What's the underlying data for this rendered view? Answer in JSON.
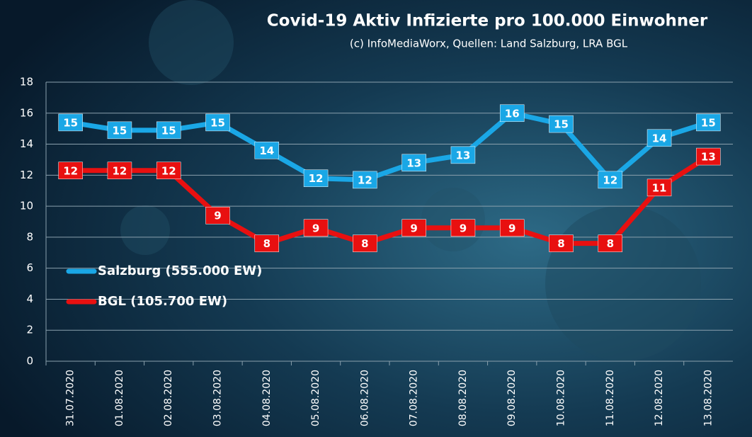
{
  "chart_data": {
    "type": "line",
    "title": "Covid-19 Aktiv Infizierte  pro 100.000 Einwohner",
    "subtitle": "(c) InfoMediaWorx, Quellen: Land Salzburg, LRA BGL",
    "categories": [
      "31.07.2020",
      "01.08.2020",
      "02.08.2020",
      "03.08.2020",
      "04.08.2020",
      "05.08.2020",
      "06.08.2020",
      "07.08.2020",
      "08.08.2020",
      "09.08.2020",
      "10.08.2020",
      "11.08.2020",
      "12.08.2020",
      "13.08.2020"
    ],
    "series": [
      {
        "name": "Salzburg (555.000 EW)",
        "color": "#1aa7e6",
        "values": [
          15.4,
          14.9,
          14.9,
          15.4,
          13.6,
          11.8,
          11.7,
          12.8,
          13.3,
          16.0,
          15.3,
          11.7,
          14.4,
          15.4
        ],
        "value_labels": [
          "15",
          "15",
          "15",
          "15",
          "14",
          "12",
          "12",
          "13",
          "13",
          "16",
          "15",
          "12",
          "14",
          "15"
        ]
      },
      {
        "name": "BGL (105.700 EW)",
        "color": "#e81010",
        "values": [
          12.3,
          12.3,
          12.3,
          9.4,
          7.6,
          8.6,
          7.6,
          8.6,
          8.6,
          8.6,
          7.6,
          7.6,
          11.2,
          13.2
        ],
        "value_labels": [
          "12",
          "12",
          "12",
          "9",
          "8",
          "9",
          "8",
          "9",
          "9",
          "9",
          "8",
          "8",
          "11",
          "13"
        ]
      }
    ],
    "ylim": [
      0,
      18
    ],
    "yticks": [
      0,
      2,
      4,
      6,
      8,
      10,
      12,
      14,
      16,
      18
    ],
    "grid": true
  }
}
